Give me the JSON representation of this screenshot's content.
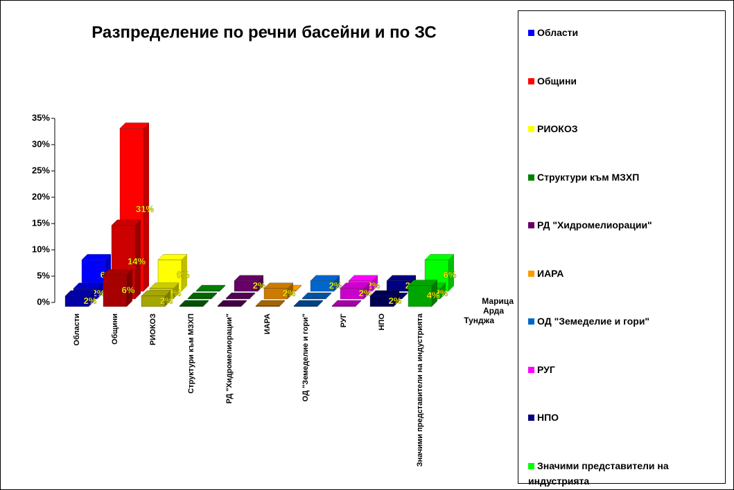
{
  "chart_data": {
    "type": "bar3d",
    "title": "Разпределение по речни басейни и по ЗС",
    "categories": [
      "Области",
      "Общини",
      "РИОКОЗ",
      "Структури към МЗХП",
      "РД \"Хидромелиорации\"",
      "ИАРА",
      "ОД \"Земеделие и гори\"",
      "РУГ",
      "НПО",
      "Значими представители на индустрията"
    ],
    "colors": [
      "#0000ff",
      "#ff0000",
      "#ffff00",
      "#008000",
      "#660066",
      "#ff9900",
      "#0066cc",
      "#ff00ff",
      "#000080",
      "#00ff00"
    ],
    "series": [
      {
        "name": "Марица",
        "values": [
          6,
          31,
          6,
          0,
          2,
          0,
          2,
          2,
          2,
          6
        ],
        "value_labels": [
          "6%",
          "31%",
          "6%",
          null,
          "2%",
          null,
          "2%",
          "2%",
          "2%",
          "6%"
        ]
      },
      {
        "name": "Арда",
        "values": [
          2,
          14,
          2,
          0,
          0,
          2,
          0,
          2,
          0,
          2
        ],
        "value_labels": [
          "2%",
          "14%",
          "2%",
          null,
          null,
          "2%",
          null,
          "2%",
          null,
          "2%"
        ]
      },
      {
        "name": "Тунджа",
        "values": [
          2,
          6,
          2,
          0,
          0,
          0,
          0,
          0,
          2,
          4
        ],
        "value_labels": [
          "2%",
          "6%",
          "2%",
          null,
          null,
          null,
          null,
          null,
          "2%",
          "4%"
        ]
      }
    ],
    "ylim": [
      0,
      35
    ],
    "yticks": [
      {
        "value": 0,
        "label": "0%"
      },
      {
        "value": 5,
        "label": "5%"
      },
      {
        "value": 10,
        "label": "10%"
      },
      {
        "value": 15,
        "label": "15%"
      },
      {
        "value": 20,
        "label": "20%"
      },
      {
        "value": 25,
        "label": "25%"
      },
      {
        "value": 30,
        "label": "30%"
      },
      {
        "value": 35,
        "label": "35%"
      }
    ]
  }
}
